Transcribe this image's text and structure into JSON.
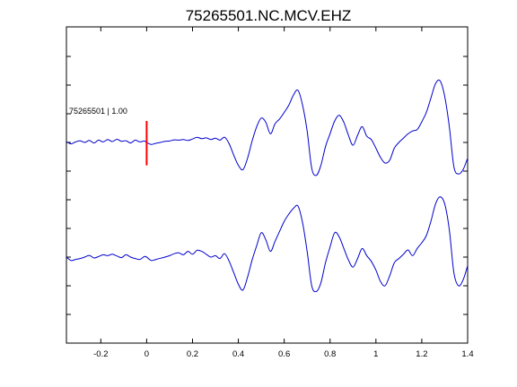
{
  "chart_data": {
    "type": "line",
    "title": "75265501.NC.MCV.EHZ",
    "xlabel": "",
    "ylabel": "",
    "xlim": [
      -0.35,
      1.4
    ],
    "xticks": [
      -0.2,
      0,
      0.2,
      0.4,
      0.6,
      0.8,
      1,
      1.2,
      1.4
    ],
    "xtick_labels": [
      "-0.2",
      "0",
      "0.2",
      "0.4",
      "0.6",
      "0.8",
      "1",
      "1.2",
      "1.4"
    ],
    "y_tick_labels_shown": false,
    "grid": false,
    "legend": "none",
    "line_color": "#0000cc",
    "marker_color": "#ff0000",
    "pick": {
      "x": 0,
      "label": "75265501 | 1.00"
    },
    "series": [
      {
        "offset": 0,
        "x": [
          -0.35,
          -0.33,
          -0.31,
          -0.29,
          -0.27,
          -0.25,
          -0.23,
          -0.21,
          -0.19,
          -0.17,
          -0.15,
          -0.13,
          -0.11,
          -0.09,
          -0.07,
          -0.05,
          -0.03,
          -0.01,
          0.0,
          0.02,
          0.04,
          0.06,
          0.08,
          0.1,
          0.12,
          0.14,
          0.16,
          0.18,
          0.2,
          0.22,
          0.24,
          0.26,
          0.28,
          0.3,
          0.32,
          0.34,
          0.36,
          0.38,
          0.4,
          0.42,
          0.44,
          0.46,
          0.48,
          0.5,
          0.52,
          0.54,
          0.56,
          0.58,
          0.6,
          0.62,
          0.64,
          0.66,
          0.68,
          0.7,
          0.72,
          0.74,
          0.76,
          0.78,
          0.8,
          0.82,
          0.84,
          0.86,
          0.88,
          0.9,
          0.92,
          0.94,
          0.96,
          0.98,
          1.0,
          1.02,
          1.04,
          1.06,
          1.08,
          1.1,
          1.12,
          1.14,
          1.16,
          1.18,
          1.2,
          1.22,
          1.24,
          1.26,
          1.28,
          1.3,
          1.32,
          1.34,
          1.36,
          1.38,
          1.4
        ],
        "y": [
          0.03,
          -0.05,
          0.02,
          0.06,
          0.0,
          0.07,
          -0.02,
          0.08,
          0.02,
          0.1,
          0.03,
          0.11,
          0.04,
          0.06,
          -0.02,
          0.08,
          0.02,
          0.05,
          0.0,
          -0.07,
          -0.03,
          0.0,
          0.04,
          0.05,
          0.09,
          0.08,
          0.1,
          0.07,
          0.12,
          0.18,
          0.13,
          0.16,
          0.1,
          0.15,
          0.08,
          0.18,
          -0.05,
          -0.45,
          -0.8,
          -0.95,
          -0.55,
          0.05,
          0.55,
          0.85,
          0.7,
          0.3,
          0.65,
          0.82,
          1.05,
          1.3,
          1.65,
          1.82,
          1.3,
          0.4,
          -0.9,
          -1.15,
          -0.8,
          -0.15,
          0.3,
          0.75,
          0.95,
          0.7,
          0.25,
          -0.1,
          0.25,
          0.55,
          0.22,
          0.1,
          -0.2,
          -0.52,
          -0.72,
          -0.62,
          -0.2,
          0.0,
          0.15,
          0.3,
          0.4,
          0.45,
          0.72,
          1.05,
          1.55,
          2.05,
          2.15,
          1.6,
          0.55,
          -0.85,
          -1.1,
          -0.95,
          -0.55
        ]
      },
      {
        "offset": -4,
        "x": [
          -0.35,
          -0.33,
          -0.31,
          -0.29,
          -0.27,
          -0.25,
          -0.23,
          -0.21,
          -0.19,
          -0.17,
          -0.15,
          -0.13,
          -0.11,
          -0.09,
          -0.07,
          -0.05,
          -0.03,
          -0.01,
          0.0,
          0.02,
          0.04,
          0.06,
          0.08,
          0.1,
          0.12,
          0.14,
          0.16,
          0.18,
          0.2,
          0.22,
          0.24,
          0.26,
          0.28,
          0.3,
          0.32,
          0.34,
          0.36,
          0.38,
          0.4,
          0.42,
          0.44,
          0.46,
          0.48,
          0.5,
          0.52,
          0.54,
          0.56,
          0.58,
          0.6,
          0.62,
          0.64,
          0.66,
          0.68,
          0.7,
          0.72,
          0.74,
          0.76,
          0.78,
          0.8,
          0.82,
          0.84,
          0.86,
          0.88,
          0.9,
          0.92,
          0.94,
          0.96,
          0.98,
          1.0,
          1.02,
          1.04,
          1.06,
          1.08,
          1.1,
          1.12,
          1.14,
          1.16,
          1.18,
          1.2,
          1.22,
          1.24,
          1.26,
          1.28,
          1.3,
          1.32,
          1.34,
          1.36,
          1.38,
          1.4
        ],
        "y": [
          0.0,
          -0.12,
          -0.08,
          -0.05,
          0.0,
          0.06,
          -0.03,
          0.02,
          0.08,
          0.05,
          0.1,
          0.04,
          -0.02,
          0.08,
          0.0,
          -0.05,
          -0.08,
          0.02,
          0.0,
          -0.12,
          -0.08,
          -0.04,
          0.0,
          0.05,
          0.12,
          0.15,
          0.08,
          0.2,
          0.1,
          0.24,
          0.2,
          0.1,
          0.0,
          0.05,
          -0.05,
          0.12,
          -0.15,
          -0.55,
          -0.95,
          -1.15,
          -0.7,
          -0.1,
          0.4,
          0.85,
          0.6,
          0.2,
          0.55,
          0.9,
          1.25,
          1.5,
          1.7,
          1.78,
          1.2,
          0.2,
          -1.0,
          -1.2,
          -0.9,
          -0.2,
          0.35,
          0.85,
          0.7,
          0.3,
          -0.1,
          -0.35,
          -0.05,
          0.3,
          0.05,
          -0.15,
          -0.45,
          -0.85,
          -1.0,
          -0.65,
          -0.2,
          -0.05,
          0.1,
          0.25,
          0.05,
          0.3,
          0.5,
          0.75,
          1.25,
          1.85,
          2.1,
          1.85,
          0.95,
          -0.55,
          -1.0,
          -0.8,
          -0.3
        ]
      }
    ]
  }
}
